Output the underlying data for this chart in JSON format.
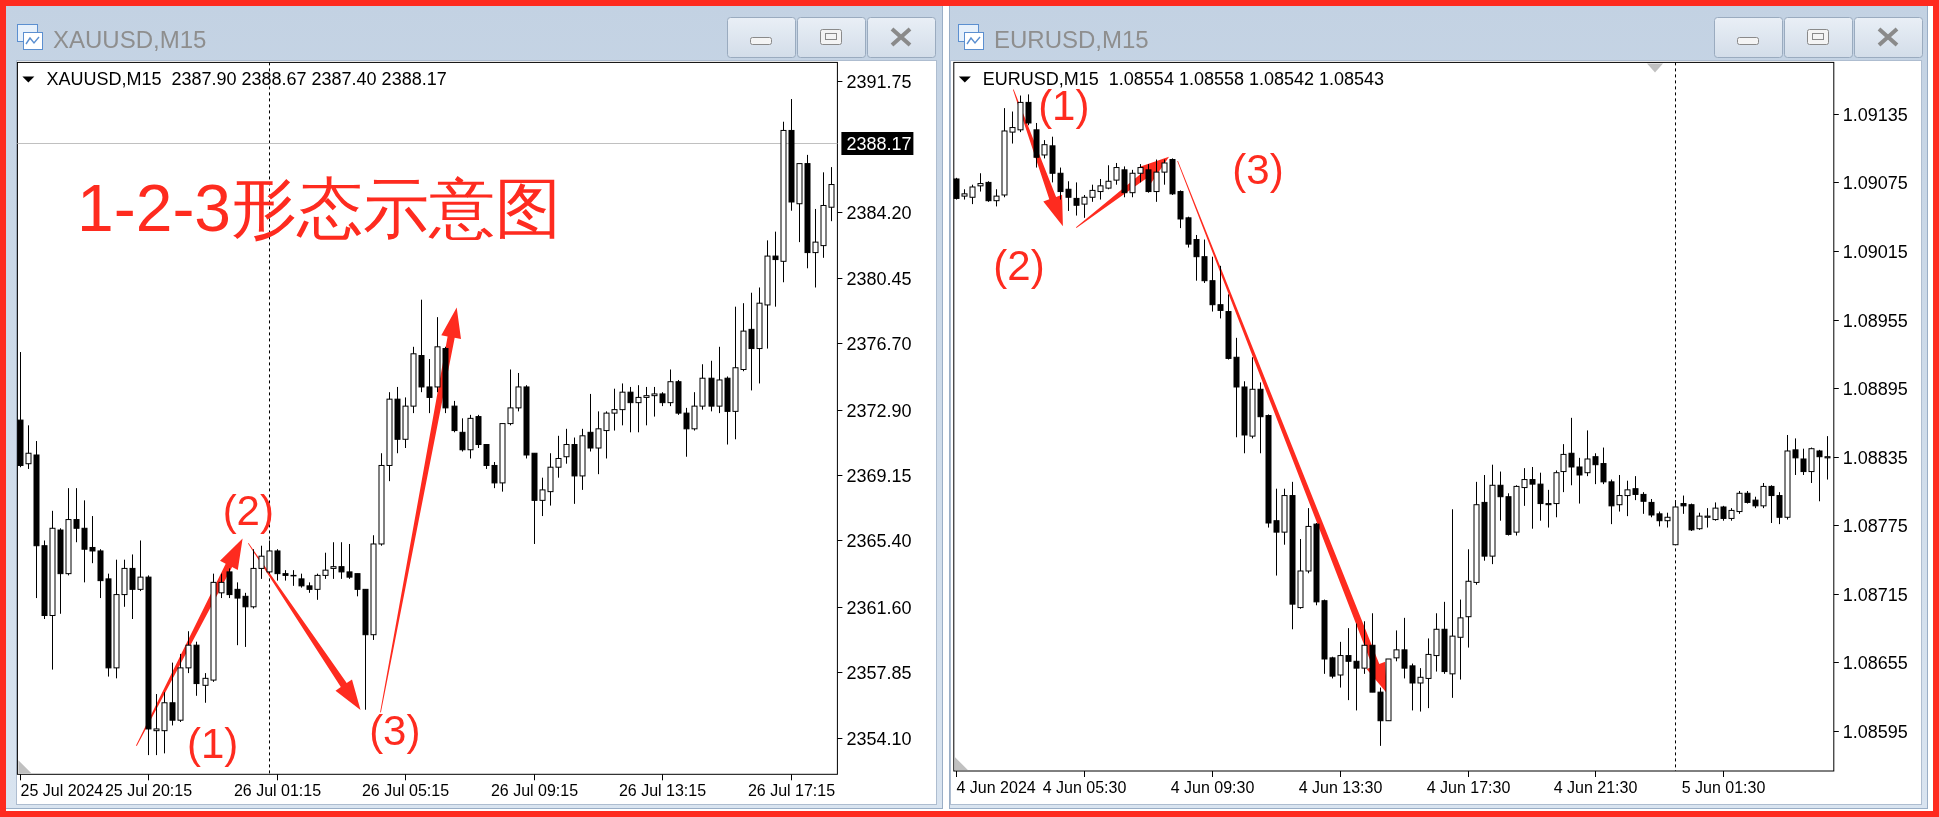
{
  "chart_data": [
    {
      "type": "candlestick",
      "title": "XAUUSD,M15",
      "subtitle": "XAUUSD,M15  2387.90 2388.67 2387.40 2388.17",
      "categories": [
        null,
        null,
        null,
        null,
        null,
        null,
        null,
        null,
        null,
        null,
        null,
        null,
        null,
        null,
        null,
        null,
        "25 Jul 20:15",
        null,
        null,
        null,
        null,
        null,
        null,
        null,
        null,
        null,
        null,
        null,
        null,
        null,
        null,
        null,
        "26 Jul 01:15",
        null,
        null,
        null,
        null,
        null,
        null,
        null,
        null,
        null,
        null,
        null,
        null,
        null,
        null,
        null,
        "26 Jul 05:15",
        null,
        null,
        null,
        null,
        null,
        null,
        null,
        null,
        null,
        null,
        null,
        null,
        null,
        null,
        null,
        "26 Jul 09:15",
        null,
        null,
        null,
        null,
        null,
        null,
        null,
        null,
        null,
        null,
        null,
        null,
        null,
        null,
        null,
        "26 Jul 13:15",
        null,
        null,
        null,
        null,
        null,
        null,
        null,
        null,
        null,
        null,
        null,
        null,
        null,
        null,
        null,
        "26 Jul 17:15",
        null,
        null,
        null,
        null,
        null
      ],
      "ohlc": [
        [
          2372.3,
          2376.2,
          2369.6,
          2369.7
        ],
        [
          2369.8,
          2372.0,
          2369.5,
          2370.4
        ],
        [
          2370.3,
          2371.1,
          2362.1,
          2365.1
        ],
        [
          2365.1,
          2365.4,
          2360.9,
          2361.1
        ],
        [
          2361.1,
          2367.1,
          2358.0,
          2366.1
        ],
        [
          2366.0,
          2366.1,
          2361.2,
          2363.5
        ],
        [
          2363.5,
          2368.4,
          2363.4,
          2366.6
        ],
        [
          2366.6,
          2368.4,
          2365.3,
          2366.1
        ],
        [
          2366.1,
          2367.7,
          2363.0,
          2364.9
        ],
        [
          2365.0,
          2366.8,
          2364.1,
          2364.8
        ],
        [
          2364.8,
          2364.9,
          2362.1,
          2363.1
        ],
        [
          2363.2,
          2363.5,
          2357.6,
          2358.1
        ],
        [
          2358.1,
          2364.3,
          2357.5,
          2362.3
        ],
        [
          2362.3,
          2364.3,
          2361.6,
          2363.8
        ],
        [
          2363.8,
          2364.6,
          2360.9,
          2362.6
        ],
        [
          2362.6,
          2365.4,
          2362.5,
          2363.3
        ],
        [
          2363.3,
          2363.4,
          2353.1,
          2354.6
        ],
        [
          2354.5,
          2356.6,
          2353.1,
          2354.6
        ],
        [
          2354.5,
          2356.7,
          2353.2,
          2356.1
        ],
        [
          2356.1,
          2358.4,
          2354.8,
          2355.1
        ],
        [
          2355.1,
          2358.9,
          2355.0,
          2358.1
        ],
        [
          2358.1,
          2360.2,
          2357.8,
          2359.4
        ],
        [
          2359.4,
          2359.6,
          2356.5,
          2357.2
        ],
        [
          2357.1,
          2357.8,
          2356.1,
          2357.5
        ],
        [
          2357.4,
          2363.5,
          2357.3,
          2363.0
        ],
        [
          2362.4,
          2363.5,
          2362.1,
          2363.0
        ],
        [
          2363.6,
          2363.8,
          2362.1,
          2362.3
        ],
        [
          2362.6,
          2363.0,
          2359.4,
          2362.1
        ],
        [
          2362.2,
          2362.4,
          2359.3,
          2361.6
        ],
        [
          2361.6,
          2364.9,
          2361.5,
          2363.8
        ],
        [
          2363.8,
          2365.1,
          2363.2,
          2364.5
        ],
        [
          2363.6,
          2365.4,
          2363.5,
          2364.8
        ],
        [
          2364.8,
          2364.9,
          2363.1,
          2363.5
        ],
        [
          2363.5,
          2363.7,
          2363.1,
          2363.4
        ],
        [
          2363.4,
          2363.7,
          2362.8,
          2363.4
        ],
        [
          2363.2,
          2363.5,
          2362.7,
          2362.8
        ],
        [
          2362.8,
          2363.0,
          2362.4,
          2362.6
        ],
        [
          2362.6,
          2363.5,
          2362.0,
          2363.4
        ],
        [
          2363.4,
          2364.7,
          2363.2,
          2363.7
        ],
        [
          2363.8,
          2365.3,
          2363.2,
          2363.9
        ],
        [
          2363.9,
          2365.3,
          2363.2,
          2363.6
        ],
        [
          2363.6,
          2365.2,
          2363.2,
          2363.3
        ],
        [
          2363.5,
          2363.5,
          2362.2,
          2362.6
        ],
        [
          2362.6,
          2362.6,
          2355.7,
          2360.0
        ],
        [
          2360.0,
          2365.7,
          2359.7,
          2365.2
        ],
        [
          2365.2,
          2370.4,
          2365.1,
          2369.7
        ],
        [
          2369.7,
          2373.9,
          2368.8,
          2373.5
        ],
        [
          2373.5,
          2374.2,
          2370.4,
          2371.2
        ],
        [
          2371.2,
          2373.6,
          2370.7,
          2373.1
        ],
        [
          2373.1,
          2376.5,
          2372.7,
          2376.1
        ],
        [
          2376.0,
          2379.2,
          2373.9,
          2374.2
        ],
        [
          2374.2,
          2375.8,
          2372.7,
          2373.6
        ],
        [
          2374.2,
          2378.2,
          2373.9,
          2376.5
        ],
        [
          2376.4,
          2376.5,
          2372.7,
          2373.0
        ],
        [
          2373.1,
          2373.4,
          2371.6,
          2371.7
        ],
        [
          2371.6,
          2372.4,
          2370.5,
          2370.6
        ],
        [
          2370.6,
          2372.6,
          2370.1,
          2372.4
        ],
        [
          2372.5,
          2372.6,
          2370.7,
          2370.9
        ],
        [
          2370.9,
          2370.9,
          2369.5,
          2369.7
        ],
        [
          2369.7,
          2369.9,
          2368.4,
          2368.7
        ],
        [
          2368.7,
          2372.1,
          2368.2,
          2372.1
        ],
        [
          2372.1,
          2375.2,
          2372.0,
          2373.0
        ],
        [
          2373.0,
          2375.0,
          2372.8,
          2374.2
        ],
        [
          2374.2,
          2374.3,
          2370.1,
          2370.3
        ],
        [
          2370.4,
          2370.4,
          2365.2,
          2367.7
        ],
        [
          2367.7,
          2369.0,
          2366.8,
          2368.3
        ],
        [
          2368.2,
          2370.4,
          2367.4,
          2369.6
        ],
        [
          2369.6,
          2371.4,
          2369.0,
          2370.1
        ],
        [
          2370.2,
          2371.8,
          2369.8,
          2370.9
        ],
        [
          2370.9,
          2371.3,
          2367.5,
          2369.1
        ],
        [
          2369.1,
          2371.8,
          2368.3,
          2371.4
        ],
        [
          2371.6,
          2373.8,
          2370.5,
          2370.7
        ],
        [
          2370.7,
          2372.8,
          2369.2,
          2371.8
        ],
        [
          2371.7,
          2372.8,
          2370.1,
          2372.7
        ],
        [
          2372.7,
          2374.1,
          2371.7,
          2372.9
        ],
        [
          2372.9,
          2374.4,
          2372.0,
          2373.9
        ],
        [
          2373.9,
          2374.2,
          2371.6,
          2373.3
        ],
        [
          2373.3,
          2374.3,
          2371.6,
          2373.6
        ],
        [
          2373.6,
          2374.2,
          2372.0,
          2373.7
        ],
        [
          2373.7,
          2374.2,
          2372.5,
          2373.8
        ],
        [
          2373.8,
          2373.9,
          2373.1,
          2373.3
        ],
        [
          2373.3,
          2375.2,
          2373.1,
          2374.5
        ],
        [
          2374.5,
          2374.6,
          2372.6,
          2372.7
        ],
        [
          2372.7,
          2373.0,
          2370.2,
          2371.8
        ],
        [
          2371.8,
          2373.9,
          2371.7,
          2373.1
        ],
        [
          2373.1,
          2375.5,
          2372.9,
          2374.7
        ],
        [
          2374.7,
          2375.7,
          2372.8,
          2373.1
        ],
        [
          2373.1,
          2376.5,
          2372.7,
          2374.6
        ],
        [
          2374.7,
          2374.8,
          2370.9,
          2372.8
        ],
        [
          2372.8,
          2378.8,
          2371.2,
          2375.3
        ],
        [
          2375.2,
          2379.0,
          2375.1,
          2377.4
        ],
        [
          2377.5,
          2379.6,
          2374.0,
          2376.4
        ],
        [
          2376.4,
          2379.9,
          2374.4,
          2379.0
        ],
        [
          2378.9,
          2382.6,
          2376.4,
          2381.7
        ],
        [
          2381.7,
          2383.1,
          2378.8,
          2381.5
        ],
        [
          2381.4,
          2389.4,
          2380.2,
          2388.9
        ],
        [
          2388.9,
          2390.7,
          2384.3,
          2384.8
        ],
        [
          2384.7,
          2387.0,
          2382.5,
          2387.0
        ],
        [
          2387.0,
          2387.5,
          2381.0,
          2381.9
        ],
        [
          2381.9,
          2384.4,
          2379.9,
          2382.5
        ],
        [
          2382.3,
          2386.5,
          2381.6,
          2384.6
        ],
        [
          2384.5,
          2386.8,
          2383.7,
          2385.8
        ]
      ],
      "ylim": [
        2352.0,
        2392.8
      ],
      "yticks": [
        2391.75,
        {
          "value": 2384.2,
          "label": "2384.20"
        },
        2380.45,
        {
          "value": 2376.7,
          "label": "2376.70"
        },
        {
          "value": 2372.9,
          "label": "2372.90"
        },
        2369.15,
        {
          "value": 2365.4,
          "label": "2365.40"
        },
        {
          "value": 2361.6,
          "label": "2361.60"
        },
        2357.85,
        {
          "value": 2354.1,
          "label": "2354.10"
        }
      ],
      "ref_lines": [
        {
          "axis": "y",
          "value": 2388.17,
          "label": "2388.17",
          "color": "#c0c0c0",
          "line_style": "solid"
        }
      ],
      "annotations": [
        "1-2-3形态示意图",
        "(1)",
        "(2)",
        "(3)",
        "25 Jul 2024"
      ]
    },
    {
      "type": "candlestick",
      "title": "EURUSD,M15",
      "subtitle": "EURUSD,M15  1.08554 1.08558 1.08542 1.08543",
      "categories": [
        null,
        null,
        null,
        null,
        null,
        null,
        null,
        null,
        null,
        null,
        null,
        null,
        null,
        null,
        null,
        null,
        "4 Jun 05:30",
        null,
        null,
        null,
        null,
        null,
        null,
        null,
        null,
        null,
        null,
        null,
        null,
        null,
        null,
        null,
        "4 Jun 09:30",
        null,
        null,
        null,
        null,
        null,
        null,
        null,
        null,
        null,
        null,
        null,
        null,
        null,
        null,
        null,
        "4 Jun 13:30",
        null,
        null,
        null,
        null,
        null,
        null,
        null,
        null,
        null,
        null,
        null,
        null,
        null,
        null,
        null,
        "4 Jun 17:30",
        null,
        null,
        null,
        null,
        null,
        null,
        null,
        null,
        null,
        null,
        null,
        null,
        null,
        null,
        null,
        "4 Jun 21:30",
        null,
        null,
        null,
        null,
        null,
        null,
        null,
        null,
        null,
        null,
        null,
        null,
        null,
        null,
        null,
        "5 Jun 01:30",
        null,
        null,
        null,
        null,
        null,
        null,
        null,
        null,
        null,
        null,
        null,
        null,
        null
      ],
      "ohlc": [
        [
          1.09078,
          1.09079,
          1.0906,
          1.09061
        ],
        [
          1.09063,
          1.09069,
          1.0906,
          1.09065
        ],
        [
          1.09062,
          1.09073,
          1.09056,
          1.09071
        ],
        [
          1.09072,
          1.09083,
          1.09067,
          1.09074
        ],
        [
          1.09075,
          1.09076,
          1.09058,
          1.09059
        ],
        [
          1.09059,
          1.09069,
          1.09054,
          1.09063
        ],
        [
          1.09064,
          1.0914,
          1.09062,
          1.0912
        ],
        [
          1.09119,
          1.09137,
          1.09109,
          1.09123
        ],
        [
          1.09121,
          1.09151,
          1.09119,
          1.09145
        ],
        [
          1.09145,
          1.09152,
          1.09125,
          1.09127
        ],
        [
          1.09121,
          1.09127,
          1.09088,
          1.09097
        ],
        [
          1.09099,
          1.09112,
          1.09096,
          1.09108
        ],
        [
          1.09107,
          1.09115,
          1.09075,
          1.09083
        ],
        [
          1.09083,
          1.09088,
          1.0906,
          1.09067
        ],
        [
          1.09069,
          1.09076,
          1.0905,
          1.09062
        ],
        [
          1.09061,
          1.09075,
          1.09046,
          1.09055
        ],
        [
          1.09056,
          1.09064,
          1.09044,
          1.09062
        ],
        [
          1.09062,
          1.09073,
          1.09058,
          1.09068
        ],
        [
          1.09067,
          1.09078,
          1.0906,
          1.09072
        ],
        [
          1.0907,
          1.0909,
          1.09069,
          1.09076
        ],
        [
          1.09077,
          1.09092,
          1.09073,
          1.09088
        ],
        [
          1.09086,
          1.09089,
          1.09062,
          1.09066
        ],
        [
          1.09066,
          1.09086,
          1.09062,
          1.09083
        ],
        [
          1.09083,
          1.09091,
          1.09075,
          1.09088
        ],
        [
          1.09086,
          1.09091,
          1.09066,
          1.09067
        ],
        [
          1.09067,
          1.09095,
          1.09058,
          1.09084
        ],
        [
          1.09084,
          1.09095,
          1.09073,
          1.09092
        ],
        [
          1.09095,
          1.09096,
          1.09064,
          1.09065
        ],
        [
          1.09067,
          1.09068,
          1.09035,
          1.09043
        ],
        [
          1.09044,
          1.09045,
          1.09018,
          1.09021
        ],
        [
          1.09025,
          1.09029,
          1.08989,
          1.0901
        ],
        [
          1.0901,
          1.09025,
          1.08987,
          1.08989
        ],
        [
          1.08989,
          1.0901,
          1.08962,
          1.08968
        ],
        [
          1.08968,
          1.09002,
          1.08956,
          1.08963
        ],
        [
          1.08962,
          1.08977,
          1.0892,
          1.08921
        ],
        [
          1.08922,
          1.08939,
          1.08852,
          1.08896
        ],
        [
          1.08896,
          1.08901,
          1.08838,
          1.08854
        ],
        [
          1.08853,
          1.08922,
          1.08851,
          1.08894
        ],
        [
          1.08894,
          1.089,
          1.08838,
          1.0887
        ],
        [
          1.08871,
          1.08872,
          1.08773,
          1.08777
        ],
        [
          1.08779,
          1.08807,
          1.08731,
          1.08769
        ],
        [
          1.08769,
          1.08807,
          1.08758,
          1.08801
        ],
        [
          1.08801,
          1.08813,
          1.08684,
          1.08706
        ],
        [
          1.08703,
          1.08763,
          1.08702,
          1.08735
        ],
        [
          1.08735,
          1.0879,
          1.08733,
          1.08774
        ],
        [
          1.08776,
          1.08777,
          1.08705,
          1.08708
        ],
        [
          1.08709,
          1.0871,
          1.08645,
          1.08658
        ],
        [
          1.08659,
          1.0866,
          1.08641,
          1.08643
        ],
        [
          1.08644,
          1.08673,
          1.08633,
          1.08661
        ],
        [
          1.08661,
          1.08685,
          1.08622,
          1.08656
        ],
        [
          1.08656,
          1.08689,
          1.08613,
          1.0865
        ],
        [
          1.0865,
          1.08691,
          1.08645,
          1.0867
        ],
        [
          1.0867,
          1.08698,
          1.08629,
          1.08629
        ],
        [
          1.08629,
          1.08633,
          1.08582,
          1.08604
        ],
        [
          1.08604,
          1.08658,
          1.08604,
          1.08658
        ],
        [
          1.08659,
          1.08683,
          1.08656,
          1.08666
        ],
        [
          1.08666,
          1.08694,
          1.08641,
          1.0865
        ],
        [
          1.08652,
          1.08654,
          1.08613,
          1.08637
        ],
        [
          1.08637,
          1.0865,
          1.08612,
          1.08642
        ],
        [
          1.08641,
          1.08676,
          1.08615,
          1.08662
        ],
        [
          1.08661,
          1.08698,
          1.08647,
          1.08684
        ],
        [
          1.08684,
          1.08708,
          1.08645,
          1.08647
        ],
        [
          1.08645,
          1.08789,
          1.08624,
          1.08678
        ],
        [
          1.08677,
          1.0871,
          1.0864,
          1.08694
        ],
        [
          1.08695,
          1.08754,
          1.08668,
          1.08726
        ],
        [
          1.08725,
          1.08813,
          1.08723,
          1.08793
        ],
        [
          1.08795,
          1.08819,
          1.08744,
          1.08748
        ],
        [
          1.08748,
          1.08828,
          1.08741,
          1.0881
        ],
        [
          1.0881,
          1.08822,
          1.08779,
          1.088
        ],
        [
          1.088,
          1.08803,
          1.08766,
          1.08767
        ],
        [
          1.08769,
          1.0881,
          1.08766,
          1.08809
        ],
        [
          1.08808,
          1.08825,
          1.08792,
          1.08815
        ],
        [
          1.08815,
          1.08826,
          1.08772,
          1.08811
        ],
        [
          1.08811,
          1.08821,
          1.08779,
          1.08794
        ],
        [
          1.08794,
          1.08806,
          1.08773,
          1.08793
        ],
        [
          1.08794,
          1.08823,
          1.08782,
          1.08821
        ],
        [
          1.08822,
          1.08846,
          1.08804,
          1.08837
        ],
        [
          1.08838,
          1.08869,
          1.0881,
          1.08826
        ],
        [
          1.08826,
          1.08834,
          1.08794,
          1.08819
        ],
        [
          1.08821,
          1.08858,
          1.08818,
          1.08833
        ],
        [
          1.08835,
          1.08838,
          1.08811,
          1.08828
        ],
        [
          1.08829,
          1.08843,
          1.08811,
          1.08813
        ],
        [
          1.08813,
          1.08815,
          1.08776,
          1.08792
        ],
        [
          1.08793,
          1.08819,
          1.08787,
          1.08801
        ],
        [
          1.08801,
          1.08814,
          1.08783,
          1.08806
        ],
        [
          1.08807,
          1.08818,
          1.08797,
          1.08802
        ],
        [
          1.08802,
          1.08804,
          1.08785,
          1.08796
        ],
        [
          1.08795,
          1.08798,
          1.08782,
          1.08784
        ],
        [
          1.08785,
          1.08787,
          1.08774,
          1.08779
        ],
        [
          1.08779,
          1.08786,
          1.08773,
          1.08782
        ],
        [
          1.08758,
          1.08797,
          1.08758,
          1.08791
        ],
        [
          1.08794,
          1.08801,
          1.08785,
          1.08792
        ],
        [
          1.08793,
          1.08794,
          1.0877,
          1.08771
        ],
        [
          1.08772,
          1.08786,
          1.08771,
          1.08783
        ],
        [
          1.08782,
          1.0879,
          1.08773,
          1.08783
        ],
        [
          1.0878,
          1.08795,
          1.08779,
          1.0879
        ],
        [
          1.08791,
          1.08792,
          1.08779,
          1.08781
        ],
        [
          1.08781,
          1.0879,
          1.08779,
          1.08788
        ],
        [
          1.08787,
          1.08805,
          1.08785,
          1.08803
        ],
        [
          1.08803,
          1.08805,
          1.08794,
          1.08795
        ],
        [
          1.08797,
          1.088,
          1.0879,
          1.08792
        ],
        [
          1.08792,
          1.08812,
          1.0879,
          1.08809
        ],
        [
          1.08809,
          1.0881,
          1.08777,
          1.08801
        ],
        [
          1.08801,
          1.08804,
          1.08776,
          1.08782
        ],
        [
          1.08782,
          1.08854,
          1.0878,
          1.0884
        ],
        [
          1.08841,
          1.08851,
          1.08819,
          1.08834
        ],
        [
          1.08833,
          1.08842,
          1.08819,
          1.08822
        ],
        [
          1.08822,
          1.08843,
          1.08812,
          1.08842
        ],
        [
          1.0884,
          1.08841,
          1.08796,
          1.08835
        ],
        [
          1.08834,
          1.08853,
          1.08815,
          1.08835
        ]
      ],
      "ylim": [
        1.0856,
        1.0918
      ],
      "yticks": [
        1.09135,
        1.09075,
        1.09015,
        1.08955,
        1.08895,
        1.08835,
        1.08775,
        1.08715,
        1.08655,
        1.08595
      ],
      "annotations": [
        "(1)",
        "(2)",
        "(3)",
        "4 Jun 2024"
      ]
    }
  ]
}
